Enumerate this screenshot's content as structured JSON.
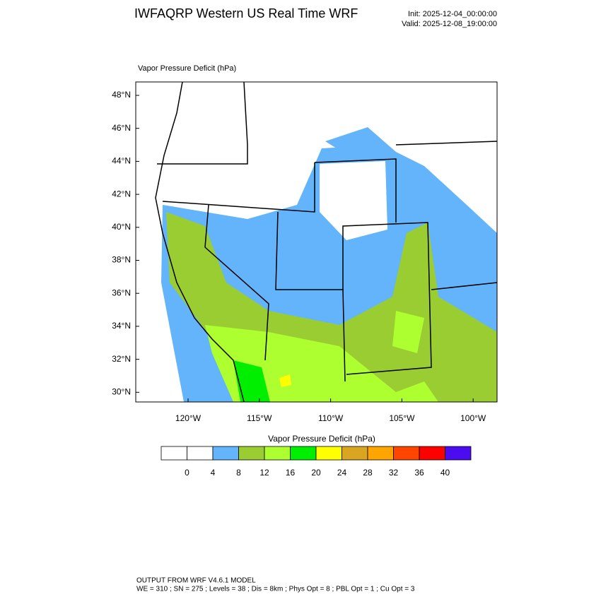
{
  "header": {
    "title": "IWFAQRP Western US Real Time WRF",
    "init": "Init: 2025-12-04_00:00:00",
    "valid": "Valid: 2025-12-08_19:00:00"
  },
  "map": {
    "label": "Vapor Pressure Deficit   (hPa)",
    "lat_labels": [
      "48°N",
      "46°N",
      "44°N",
      "42°N",
      "40°N",
      "38°N",
      "36°N",
      "34°N",
      "32°N",
      "30°N"
    ],
    "lon_labels": [
      "120°W",
      "115°W",
      "110°W",
      "105°W",
      "100°W"
    ]
  },
  "colorbar": {
    "title": "Vapor Pressure Deficit  (hPa)",
    "colors": [
      "#ffffff",
      "#ffffff",
      "#63b4fa",
      "#9acd32",
      "#adff2f",
      "#00ee00",
      "#ffff00",
      "#daa520",
      "#ffa500",
      "#ff4500",
      "#ff0000",
      "#4b0cf0"
    ],
    "levels": [
      0,
      4,
      8,
      12,
      16,
      20,
      24,
      28,
      32,
      36,
      40
    ]
  },
  "footer": {
    "line1": "OUTPUT FROM WRF V4.6.1 MODEL",
    "line2": "WE = 310 ; SN = 275 ; Levels = 38 ; Dis = 8km ; Phys Opt = 8 ; PBL Opt = 1 ; Cu Opt = 3"
  }
}
